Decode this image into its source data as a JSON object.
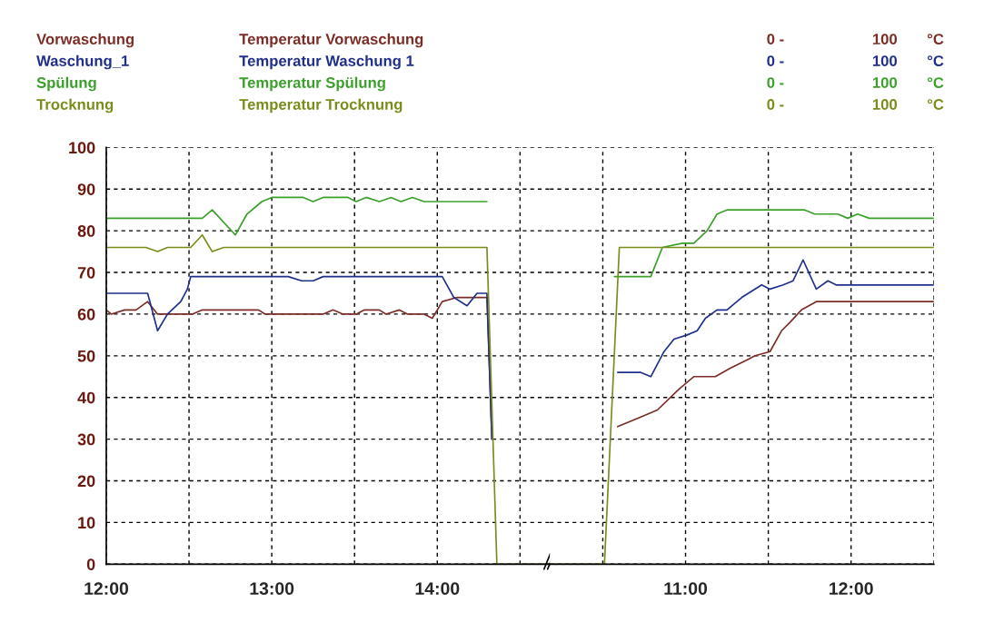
{
  "chart_data": [
    {
      "type": "line",
      "xlim": [
        12,
        14.68
      ],
      "ylim": [
        0,
        100
      ],
      "xticks": [
        {
          "value": 12,
          "label": "12:00"
        },
        {
          "value": 12.5,
          "label": null
        },
        {
          "value": 13,
          "label": "13:00"
        },
        {
          "value": 13.5,
          "label": null
        },
        {
          "value": 14,
          "label": "14:00"
        },
        {
          "value": 14.5,
          "label": null
        }
      ],
      "yticks": [
        0,
        10,
        20,
        30,
        40,
        50,
        60,
        70,
        80,
        90,
        100
      ],
      "grid": true,
      "legend": "top",
      "line_style": "solid",
      "marker": "none",
      "annotations": [
        "Temperatur Vorwaschung",
        "0 -",
        "100",
        "°C",
        "Temperatur Waschung 1",
        "0 -",
        "100",
        "°C",
        "Temperatur Spülung",
        "0 -",
        "100",
        "°C",
        "Temperatur Trocknung",
        "0 -",
        "100",
        "°C"
      ],
      "series": [
        {
          "name": "Vorwaschung",
          "color": "#7b2d26",
          "x": [
            12,
            12.03,
            12.11,
            12.18,
            12.25,
            12.31,
            12.52,
            12.58,
            12.92,
            12.96,
            13.31,
            13.37,
            13.43,
            13.51,
            13.56,
            13.65,
            13.69,
            13.77,
            13.82,
            13.92,
            13.97,
            14.03,
            14.12,
            14.3,
            14.33
          ],
          "values": [
            61,
            60,
            61,
            61,
            63,
            60,
            60,
            61,
            61,
            60,
            60,
            61,
            60,
            60,
            61,
            61,
            60,
            61,
            60,
            60,
            59,
            63,
            64,
            64,
            30
          ]
        },
        {
          "name": "Waschung_1",
          "color": "#1f2f8a",
          "x": [
            12,
            12.25,
            12.31,
            12.37,
            12.45,
            12.49,
            12.51,
            13.1,
            13.18,
            13.25,
            13.31,
            14.03,
            14.1,
            14.18,
            14.24,
            14.3,
            14.33
          ],
          "values": [
            65,
            65,
            56,
            60,
            63,
            66,
            69,
            69,
            68,
            68,
            69,
            69,
            64,
            62,
            65,
            65,
            30
          ]
        },
        {
          "name": "Spülung",
          "color": "#3aa02a",
          "x": [
            12,
            12.58,
            12.64,
            12.78,
            12.85,
            12.94,
            13,
            13.19,
            13.25,
            13.31,
            13.46,
            13.51,
            13.57,
            13.65,
            13.72,
            13.78,
            13.85,
            13.92,
            14.3
          ],
          "values": [
            83,
            83,
            85,
            79,
            84,
            87,
            88,
            88,
            87,
            88,
            88,
            87,
            88,
            87,
            88,
            87,
            88,
            87,
            87
          ]
        },
        {
          "name": "Trocknung",
          "color": "#7a8c1a",
          "x": [
            12,
            12.24,
            12.31,
            12.37,
            12.51,
            12.58,
            12.64,
            12.71,
            14.3,
            14.36,
            14.68
          ],
          "values": [
            76,
            76,
            75,
            76,
            76,
            79,
            75,
            76,
            76,
            0,
            0
          ]
        }
      ]
    },
    {
      "type": "line",
      "xlim": [
        10.18,
        12.5
      ],
      "ylim": [
        0,
        100
      ],
      "xticks": [
        {
          "value": 10.5,
          "label": null
        },
        {
          "value": 11,
          "label": "11:00"
        },
        {
          "value": 11.5,
          "label": null
        },
        {
          "value": 12,
          "label": "12:00"
        },
        {
          "value": 12.5,
          "label": null
        }
      ],
      "yticks": [
        0,
        10,
        20,
        30,
        40,
        50,
        60,
        70,
        80,
        90,
        100
      ],
      "tick_labels": "x",
      "grid": true,
      "line_style": "solid",
      "marker": "none",
      "series": [
        {
          "color": "#7b2d26",
          "x": [
            10.59,
            10.71,
            10.83,
            10.96,
            11.05,
            11.18,
            11.27,
            11.37,
            11.42,
            11.51,
            11.58,
            11.63,
            11.7,
            11.79,
            12.5
          ],
          "values": [
            33,
            35,
            37,
            42,
            45,
            45,
            47,
            49,
            50,
            51,
            56,
            58,
            61,
            63,
            63
          ]
        },
        {
          "color": "#1f2f8a",
          "x": [
            10.59,
            10.73,
            10.79,
            10.87,
            10.93,
            11.01,
            11.07,
            11.12,
            11.19,
            11.25,
            11.34,
            11.46,
            11.51,
            11.59,
            11.65,
            11.71,
            11.79,
            11.86,
            11.91,
            12.5
          ],
          "values": [
            46,
            46,
            45,
            51,
            54,
            55,
            56,
            59,
            61,
            61,
            64,
            67,
            66,
            67,
            68,
            73,
            66,
            68,
            67,
            67
          ]
        },
        {
          "color": "#3aa02a",
          "x": [
            10.57,
            10.79,
            10.86,
            10.98,
            11.05,
            11.13,
            11.19,
            11.25,
            11.72,
            11.78,
            11.92,
            11.98,
            12.04,
            12.11,
            12.5
          ],
          "values": [
            69,
            69,
            76,
            77,
            77,
            80,
            84,
            85,
            85,
            84,
            84,
            83,
            84,
            83,
            83
          ]
        },
        {
          "color": "#7a8c1a",
          "x": [
            10.18,
            10.51,
            10.6,
            12.5
          ],
          "values": [
            0,
            0,
            76,
            76
          ]
        }
      ]
    }
  ]
}
